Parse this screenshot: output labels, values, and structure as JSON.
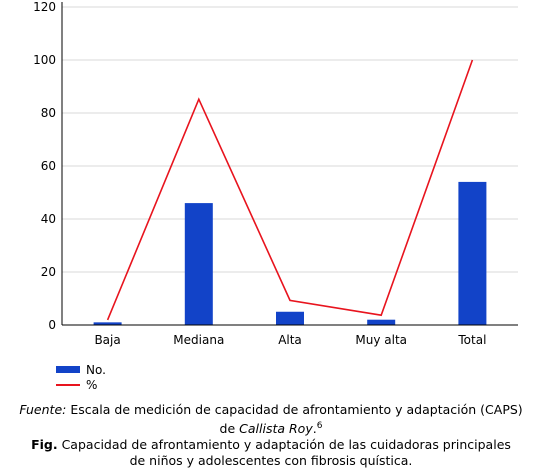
{
  "chart_data": {
    "type": "bar",
    "categories": [
      "Baja",
      "Mediana",
      "Alta",
      "Muy alta",
      "Total"
    ],
    "series": [
      {
        "name": "No.",
        "type": "bar",
        "color": "#1243c8",
        "values": [
          1,
          46,
          5,
          2,
          54
        ]
      },
      {
        "name": "%",
        "type": "line",
        "color": "#e8141e",
        "values": [
          1.9,
          85.2,
          9.3,
          3.7,
          100
        ]
      }
    ],
    "ylim": [
      0,
      120
    ],
    "yticks": [
      0,
      20,
      40,
      60,
      80,
      100,
      120
    ],
    "grid": true,
    "legend_position": "bottom-left"
  },
  "caption": {
    "source_label": "Fuente:",
    "source_text": " Escala de medición de capacidad de afrontamiento y adaptación (CAPS)",
    "source_line2_prefix": "de ",
    "source_author": "Callista Roy",
    "source_line2_suffix": ".",
    "source_ref": "6",
    "fig_label": "Fig.",
    "fig_text": " Capacidad de afrontamiento y adaptación de las cuidadoras principales",
    "fig_text_line2": "de niños y adolescentes con fibrosis quística."
  }
}
